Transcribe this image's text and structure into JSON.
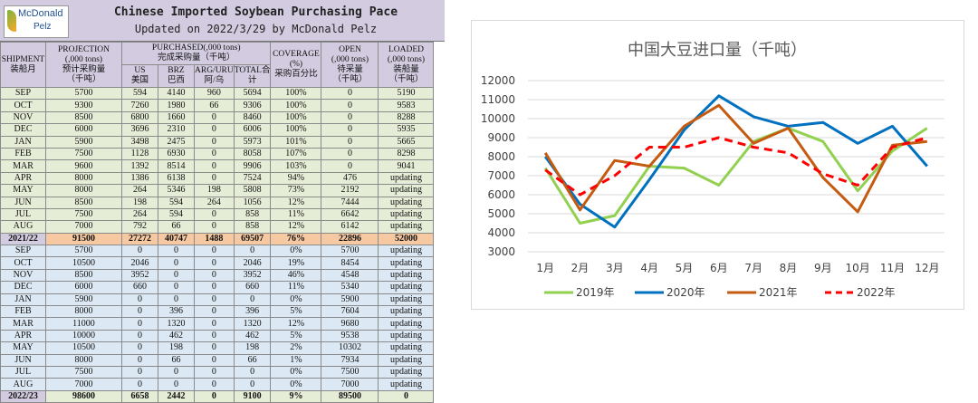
{
  "table": {
    "logo_line1": "McDonald",
    "logo_line2": "Pelz",
    "title": "Chinese Imported Soybean Purchasing Pace",
    "subtitle": "Updated on 2022/3/29 by McDonald Pelz",
    "headers": {
      "shipment": "SHIPMENT",
      "shipment_cn": "装船月",
      "projection": "PROJECTION",
      "projection_unit": "(,000 tons)",
      "projection_cn": "预计采购量",
      "projection_cn_unit": "（千吨）",
      "purchased": "PURCHASED(,000 tons)",
      "purchased_cn": "完成采购量（千吨）",
      "us": "US",
      "us_cn": "美国",
      "brz": "BRZ",
      "brz_cn": "巴西",
      "arg": "ARG/URU",
      "arg_cn": "阿/乌",
      "total": "TOTAL合",
      "total_cn": "计",
      "coverage": "COVERAGE",
      "coverage_unit": "(%)",
      "coverage_cn": "采购百分比",
      "open": "OPEN",
      "open_unit": "(,000 tons)",
      "open_cn": "待采量",
      "open_cn_unit": "（千吨）",
      "loaded": "LOADED",
      "loaded_unit": "(,000 tons)",
      "loaded_cn": "装船量",
      "loaded_cn_unit": "（千吨）"
    },
    "rows_2122": [
      [
        "SEP",
        "5700",
        "594",
        "4140",
        "960",
        "5694",
        "100%",
        "0",
        "5190"
      ],
      [
        "OCT",
        "9300",
        "7260",
        "1980",
        "66",
        "9306",
        "100%",
        "0",
        "9583"
      ],
      [
        "NOV",
        "8500",
        "6800",
        "1660",
        "0",
        "8460",
        "100%",
        "0",
        "8288"
      ],
      [
        "DEC",
        "6000",
        "3696",
        "2310",
        "0",
        "6006",
        "100%",
        "0",
        "5935"
      ],
      [
        "JAN",
        "5900",
        "3498",
        "2475",
        "0",
        "5973",
        "101%",
        "0",
        "5665"
      ],
      [
        "FEB",
        "7500",
        "1128",
        "6930",
        "0",
        "8058",
        "107%",
        "0",
        "8298"
      ],
      [
        "MAR",
        "9600",
        "1392",
        "8514",
        "0",
        "9906",
        "103%",
        "0",
        "9041"
      ],
      [
        "APR",
        "8000",
        "1386",
        "6138",
        "0",
        "7524",
        "94%",
        "476",
        "updating"
      ],
      [
        "MAY",
        "8000",
        "264",
        "5346",
        "198",
        "5808",
        "73%",
        "2192",
        "updating"
      ],
      [
        "JUN",
        "8500",
        "198",
        "594",
        "264",
        "1056",
        "12%",
        "7444",
        "updating"
      ],
      [
        "JUL",
        "7500",
        "264",
        "594",
        "0",
        "858",
        "11%",
        "6642",
        "updating"
      ],
      [
        "AUG",
        "7000",
        "792",
        "66",
        "0",
        "858",
        "12%",
        "6142",
        "updating"
      ]
    ],
    "total_2122": [
      "2021/22",
      "91500",
      "27272",
      "40747",
      "1488",
      "69507",
      "76%",
      "22896",
      "52000"
    ],
    "rows_2223": [
      [
        "SEP",
        "5700",
        "0",
        "0",
        "0",
        "0",
        "0%",
        "5700",
        "updating"
      ],
      [
        "OCT",
        "10500",
        "2046",
        "0",
        "0",
        "2046",
        "19%",
        "8454",
        "updating"
      ],
      [
        "NOV",
        "8500",
        "3952",
        "0",
        "0",
        "3952",
        "46%",
        "4548",
        "updating"
      ],
      [
        "DEC",
        "6000",
        "660",
        "0",
        "0",
        "660",
        "11%",
        "5340",
        "updating"
      ],
      [
        "JAN",
        "5900",
        "0",
        "0",
        "0",
        "0",
        "0%",
        "5900",
        "updating"
      ],
      [
        "FEB",
        "8000",
        "0",
        "396",
        "0",
        "396",
        "5%",
        "7604",
        "updating"
      ],
      [
        "MAR",
        "11000",
        "0",
        "1320",
        "0",
        "1320",
        "12%",
        "9680",
        "updating"
      ],
      [
        "APR",
        "10000",
        "0",
        "462",
        "0",
        "462",
        "5%",
        "9538",
        "updating"
      ],
      [
        "MAY",
        "10500",
        "0",
        "198",
        "0",
        "198",
        "2%",
        "10302",
        "updating"
      ],
      [
        "JUN",
        "8000",
        "0",
        "66",
        "0",
        "66",
        "1%",
        "7934",
        "updating"
      ],
      [
        "JUL",
        "7500",
        "0",
        "0",
        "0",
        "0",
        "0%",
        "7500",
        "updating"
      ],
      [
        "AUG",
        "7000",
        "0",
        "0",
        "0",
        "0",
        "0%",
        "7000",
        "updating"
      ]
    ],
    "total_2223": [
      "2022/23",
      "98600",
      "6658",
      "2442",
      "0",
      "9100",
      "9%",
      "89500",
      "0"
    ],
    "colors": {
      "header": "#d3cce0",
      "period1": "#e6edd6",
      "period2": "#dce9f4",
      "total": "#f6c9a2"
    }
  },
  "chart_data": {
    "type": "line",
    "title": "中国大豆进口量（千吨）",
    "categories": [
      "1月",
      "2月",
      "3月",
      "4月",
      "5月",
      "6月",
      "7月",
      "8月",
      "9月",
      "10月",
      "11月",
      "12月"
    ],
    "ylim": [
      3000,
      12000
    ],
    "yticks": [
      3000,
      4000,
      5000,
      6000,
      7000,
      8000,
      9000,
      10000,
      11000,
      12000
    ],
    "grid": true,
    "legend_position": "bottom",
    "series": [
      {
        "name": "2019年",
        "color": "#92d050",
        "dash": false,
        "values": [
          7400,
          4500,
          4900,
          7500,
          7400,
          6500,
          8800,
          9500,
          8800,
          6200,
          8300,
          9500
        ]
      },
      {
        "name": "2020年",
        "color": "#0070c0",
        "dash": false,
        "values": [
          8000,
          5500,
          4300,
          6800,
          9400,
          11200,
          10100,
          9600,
          9800,
          8700,
          9600,
          7500
        ]
      },
      {
        "name": "2021年",
        "color": "#c55a11",
        "dash": false,
        "values": [
          8200,
          5200,
          7800,
          7500,
          9600,
          10700,
          8700,
          9500,
          6900,
          5100,
          8600,
          8800
        ]
      },
      {
        "name": "2022年",
        "color": "#ff0000",
        "dash": true,
        "values": [
          7300,
          6000,
          7000,
          8500,
          8500,
          9000,
          8500,
          8200,
          7100,
          6500,
          8500,
          9000
        ]
      }
    ]
  }
}
